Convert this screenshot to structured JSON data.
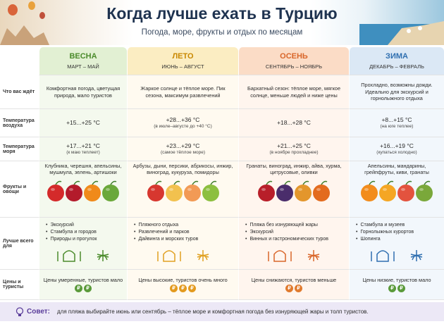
{
  "header": {
    "title": "Когда лучше ехать в Турцию",
    "subtitle": "Погода, море, фрукты и отдых по месяцам"
  },
  "row_labels": [
    "Что вас ждёт",
    "Температура воздуха",
    "Температура моря",
    "Фрукты и овощи",
    "Лучше всего для",
    "Цены и туристы"
  ],
  "columns": [
    {
      "season": "ВЕСНА",
      "months": "МАРТ – МАЙ",
      "expect": "Комфортная погода, цветущая природа, мало туристов",
      "air": "+15...+25 °C",
      "sea": "+17...+21 °C",
      "sea_note": "(к маю теплеет)",
      "fruits": "Клубника, черешня, апельсины, мушмула, зелень, артишоки",
      "best_for": [
        "Экскурсий",
        "Стамбула и городов",
        "Природы и прогулок"
      ],
      "prices": "Цены умеренные, туристов мало",
      "price_level": [
        "₽",
        "₽"
      ]
    },
    {
      "season": "ЛЕТО",
      "months": "ИЮНЬ – АВГУСТ",
      "expect": "Жаркое солнце и тёплое море. Пик сезона, максимум развлечений",
      "air": "+28...+36 °C",
      "air_note": "(в июле–августе до +40 °C)",
      "sea": "+23...+29 °C",
      "sea_note": "(самое тёплое море)",
      "fruits": "Арбузы, дыни, персики, абрикосы, инжир, виноград, кукуруза, помидоры",
      "best_for": [
        "Пляжного отдыха",
        "Развлечений и парков",
        "Дайвинга и морских туров"
      ],
      "prices": "Цены высокие, туристов очень много",
      "price_level": [
        "₽",
        "₽",
        "₽"
      ]
    },
    {
      "season": "ОСЕНЬ",
      "months": "СЕНТЯБРЬ – НОЯБРЬ",
      "expect": "Бархатный сезон: тёплое море, мягкое солнце, меньше людей и ниже цены",
      "air": "+18...+28 °C",
      "sea": "+21...+25 °C",
      "sea_note": "(в ноябре прохладнее)",
      "fruits": "Гранаты, виноград, инжир, айва, хурма, цитрусовые, оливки",
      "best_for": [
        "Пляжа без изнуряющей жары",
        "Экскурсий",
        "Винных и гастрономических туров"
      ],
      "prices": "Цены снижаются, туристов меньше",
      "price_level": [
        "₽",
        "₽"
      ]
    },
    {
      "season": "ЗИМА",
      "months": "ДЕКАБРЬ – ФЕВРАЛЬ",
      "expect": "Прохладно, возможны дожди. Идеально для экскурсий и горнолыжного отдыха",
      "air": "+8...+15 °C",
      "air_note": "(на юге теплее)",
      "sea": "+16...+19 °C",
      "sea_note": "(купаться холодно)",
      "fruits": "Апельсины, мандарины, грейпфруты, киви, гранаты",
      "best_for": [
        "Стамбула и музеев",
        "Горнолыжных курортов",
        "Шопинга"
      ],
      "prices": "Цены низкие, туристов мало",
      "price_level": [
        "₽",
        "₽"
      ]
    }
  ],
  "tip": {
    "label": "Совет:",
    "text": "для пляжа выбирайте июнь или сентябрь – тёплое море и комфортная погода без изнуряющей жары и толп туристов."
  }
}
